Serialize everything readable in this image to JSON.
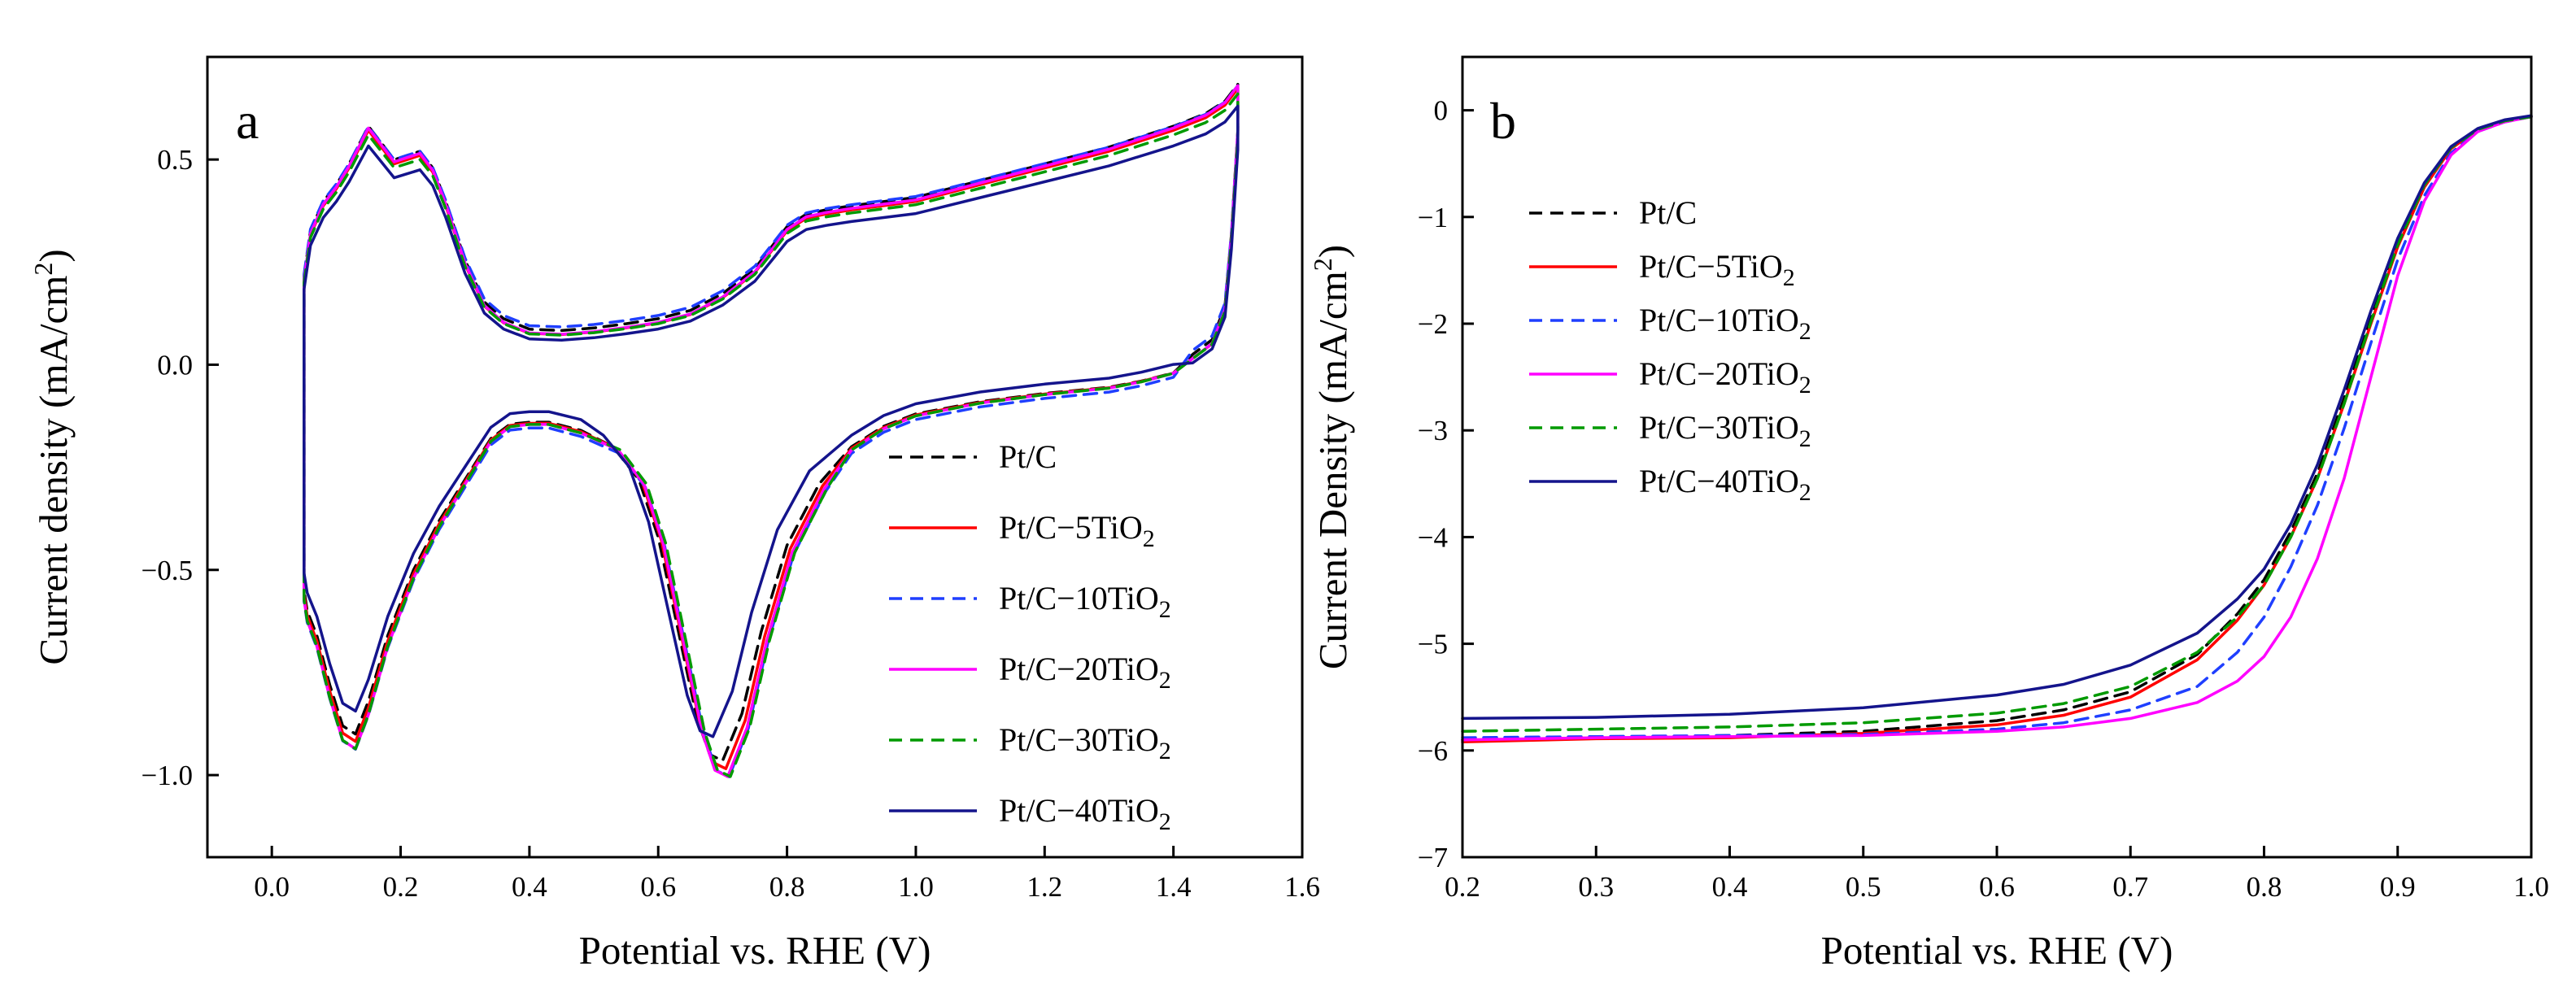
{
  "chart_data": [
    {
      "panel": "a",
      "type": "line",
      "title": "",
      "xlabel": "Potential vs. RHE (V)",
      "ylabel_main": "Current density (mA/cm",
      "ylabel_sup": "2",
      "ylabel_tail": ")",
      "xlim": [
        -0.1,
        1.6
      ],
      "ylim": [
        -1.2,
        0.75
      ],
      "xticks": [
        0.0,
        0.2,
        0.4,
        0.6,
        0.8,
        1.0,
        1.2,
        1.4,
        1.6
      ],
      "xtick_labels": [
        "0.0",
        "0.2",
        "0.4",
        "0.6",
        "0.8",
        "1.0",
        "1.2",
        "1.4",
        "1.6"
      ],
      "yticks": [
        0.5,
        0.0,
        -0.5,
        -1.0
      ],
      "ytick_labels": [
        "0.5",
        "0.0",
        "−0.5",
        "−1.0"
      ],
      "legend_position": "bottom-right",
      "grid": false,
      "base_curve": {
        "anodic": [
          [
            0.05,
            0.2
          ],
          [
            0.06,
            0.31
          ],
          [
            0.08,
            0.38
          ],
          [
            0.1,
            0.42
          ],
          [
            0.12,
            0.47
          ],
          [
            0.15,
            0.56
          ],
          [
            0.17,
            0.52
          ],
          [
            0.19,
            0.48
          ],
          [
            0.21,
            0.49
          ],
          [
            0.23,
            0.5
          ],
          [
            0.25,
            0.46
          ],
          [
            0.27,
            0.38
          ],
          [
            0.3,
            0.24
          ],
          [
            0.33,
            0.14
          ],
          [
            0.36,
            0.1
          ],
          [
            0.4,
            0.075
          ],
          [
            0.45,
            0.072
          ],
          [
            0.5,
            0.078
          ],
          [
            0.55,
            0.088
          ],
          [
            0.6,
            0.1
          ],
          [
            0.65,
            0.12
          ],
          [
            0.7,
            0.16
          ],
          [
            0.75,
            0.22
          ],
          [
            0.78,
            0.28
          ],
          [
            0.8,
            0.32
          ],
          [
            0.83,
            0.35
          ],
          [
            0.86,
            0.36
          ],
          [
            0.9,
            0.37
          ],
          [
            0.95,
            0.38
          ],
          [
            1.0,
            0.39
          ],
          [
            1.1,
            0.43
          ],
          [
            1.2,
            0.47
          ],
          [
            1.3,
            0.51
          ],
          [
            1.4,
            0.56
          ],
          [
            1.45,
            0.59
          ],
          [
            1.48,
            0.62
          ],
          [
            1.5,
            0.66
          ]
        ],
        "cathodic": [
          [
            1.5,
            0.66
          ],
          [
            1.5,
            0.55
          ],
          [
            1.49,
            0.3
          ],
          [
            1.48,
            0.13
          ],
          [
            1.46,
            0.05
          ],
          [
            1.43,
            0.015
          ],
          [
            1.4,
            -0.02
          ],
          [
            1.35,
            -0.04
          ],
          [
            1.3,
            -0.055
          ],
          [
            1.2,
            -0.07
          ],
          [
            1.1,
            -0.09
          ],
          [
            1.0,
            -0.12
          ],
          [
            0.95,
            -0.15
          ],
          [
            0.9,
            -0.2
          ],
          [
            0.85,
            -0.29
          ],
          [
            0.8,
            -0.44
          ],
          [
            0.76,
            -0.65
          ],
          [
            0.73,
            -0.85
          ],
          [
            0.7,
            -0.965
          ],
          [
            0.68,
            -0.95
          ],
          [
            0.66,
            -0.86
          ],
          [
            0.63,
            -0.64
          ],
          [
            0.6,
            -0.42
          ],
          [
            0.57,
            -0.28
          ],
          [
            0.53,
            -0.2
          ],
          [
            0.48,
            -0.16
          ],
          [
            0.43,
            -0.14
          ],
          [
            0.4,
            -0.14
          ],
          [
            0.37,
            -0.145
          ],
          [
            0.34,
            -0.18
          ],
          [
            0.3,
            -0.28
          ],
          [
            0.26,
            -0.38
          ],
          [
            0.22,
            -0.5
          ],
          [
            0.18,
            -0.66
          ],
          [
            0.15,
            -0.82
          ],
          [
            0.13,
            -0.9
          ],
          [
            0.11,
            -0.88
          ],
          [
            0.09,
            -0.78
          ],
          [
            0.07,
            -0.66
          ],
          [
            0.055,
            -0.6
          ],
          [
            0.05,
            -0.55
          ],
          [
            0.05,
            0.2
          ]
        ]
      },
      "series": [
        {
          "name": "Pt/C",
          "name_main": "Pt/C",
          "name_sub": "",
          "color": "#000000",
          "dash": "dashed",
          "anodic_factor": 1.02,
          "anodic_offset": 0.01,
          "cathodic_factor": 1.0,
          "cathodic_offset": 0.0,
          "cathodic_shift": 0.0
        },
        {
          "name": "Pt/C-5TiO2",
          "name_main": "Pt/C−5TiO",
          "name_sub": "2",
          "color": "#ff0000",
          "dash": "solid",
          "anodic_factor": 1.02,
          "anodic_offset": 0.0,
          "cathodic_factor": 1.02,
          "cathodic_offset": 0.0,
          "cathodic_shift": 0.005
        },
        {
          "name": "Pt/C-10TiO2",
          "name_main": "Pt/C−10TiO",
          "name_sub": "2",
          "color": "#1f3fff",
          "dash": "dashed",
          "anodic_factor": 1.0,
          "anodic_offset": 0.02,
          "cathodic_factor": 1.03,
          "cathodic_offset": -0.01,
          "cathodic_shift": 0.01
        },
        {
          "name": "Pt/C-20TiO2",
          "name_main": "Pt/C−20TiO",
          "name_sub": "2",
          "color": "#ff00ff",
          "dash": "solid",
          "anodic_factor": 1.03,
          "anodic_offset": 0.0,
          "cathodic_factor": 1.04,
          "cathodic_offset": 0.0,
          "cathodic_shift": 0.008
        },
        {
          "name": "Pt/C-30TiO2",
          "name_main": "Pt/C−30TiO",
          "name_sub": "2",
          "color": "#009a00",
          "dash": "dashed",
          "anodic_factor": 1.0,
          "anodic_offset": 0.0,
          "cathodic_factor": 1.04,
          "cathodic_offset": 0.0,
          "cathodic_shift": 0.012
        },
        {
          "name": "Pt/C-40TiO2",
          "name_main": "Pt/C−40TiO",
          "name_sub": "2",
          "color": "#14148c",
          "dash": "solid",
          "anodic_factor": 0.97,
          "anodic_offset": -0.01,
          "cathodic_factor": 0.96,
          "cathodic_offset": 0.02,
          "cathodic_shift": -0.015
        }
      ]
    },
    {
      "panel": "b",
      "type": "line",
      "title": "",
      "xlabel": "Potential vs. RHE (V)",
      "ylabel_main": "Current Density (mA/cm",
      "ylabel_sup": "2",
      "ylabel_tail": ")",
      "xlim": [
        0.2,
        1.0
      ],
      "ylim": [
        -7,
        0.5
      ],
      "xticks": [
        0.2,
        0.3,
        0.4,
        0.5,
        0.6,
        0.7,
        0.8,
        0.9,
        1.0
      ],
      "xtick_labels": [
        "0.2",
        "0.3",
        "0.4",
        "0.5",
        "0.6",
        "0.7",
        "0.8",
        "0.9",
        "1.0"
      ],
      "yticks": [
        0,
        -1,
        -2,
        -3,
        -4,
        -5,
        -6,
        -7
      ],
      "ytick_labels": [
        "0",
        "−1",
        "−2",
        "−3",
        "−4",
        "−5",
        "−6",
        "−7"
      ],
      "legend_position": "top-left",
      "grid": false,
      "series": [
        {
          "name": "Pt/C",
          "name_main": "Pt/C",
          "name_sub": "",
          "color": "#000000",
          "dash": "dashed",
          "points": [
            [
              0.2,
              -5.9
            ],
            [
              0.3,
              -5.88
            ],
            [
              0.4,
              -5.86
            ],
            [
              0.5,
              -5.82
            ],
            [
              0.6,
              -5.72
            ],
            [
              0.65,
              -5.62
            ],
            [
              0.7,
              -5.45
            ],
            [
              0.75,
              -5.1
            ],
            [
              0.78,
              -4.72
            ],
            [
              0.8,
              -4.4
            ],
            [
              0.82,
              -3.95
            ],
            [
              0.84,
              -3.4
            ],
            [
              0.86,
              -2.7
            ],
            [
              0.88,
              -1.95
            ],
            [
              0.9,
              -1.25
            ],
            [
              0.92,
              -0.7
            ],
            [
              0.94,
              -0.35
            ],
            [
              0.96,
              -0.18
            ],
            [
              0.98,
              -0.1
            ],
            [
              1.0,
              -0.06
            ]
          ]
        },
        {
          "name": "Pt/C-5TiO2",
          "name_main": "Pt/C−5TiO",
          "name_sub": "2",
          "color": "#ff0000",
          "dash": "solid",
          "points": [
            [
              0.2,
              -5.92
            ],
            [
              0.3,
              -5.89
            ],
            [
              0.4,
              -5.88
            ],
            [
              0.5,
              -5.84
            ],
            [
              0.6,
              -5.76
            ],
            [
              0.65,
              -5.67
            ],
            [
              0.7,
              -5.5
            ],
            [
              0.75,
              -5.15
            ],
            [
              0.78,
              -4.78
            ],
            [
              0.8,
              -4.45
            ],
            [
              0.82,
              -4.0
            ],
            [
              0.84,
              -3.45
            ],
            [
              0.86,
              -2.75
            ],
            [
              0.88,
              -2.0
            ],
            [
              0.9,
              -1.28
            ],
            [
              0.92,
              -0.72
            ],
            [
              0.94,
              -0.36
            ],
            [
              0.96,
              -0.18
            ],
            [
              0.98,
              -0.1
            ],
            [
              1.0,
              -0.06
            ]
          ]
        },
        {
          "name": "Pt/C-10TiO2",
          "name_main": "Pt/C−10TiO",
          "name_sub": "2",
          "color": "#1f3fff",
          "dash": "dashed",
          "points": [
            [
              0.2,
              -5.88
            ],
            [
              0.3,
              -5.87
            ],
            [
              0.4,
              -5.86
            ],
            [
              0.5,
              -5.85
            ],
            [
              0.6,
              -5.8
            ],
            [
              0.65,
              -5.74
            ],
            [
              0.7,
              -5.62
            ],
            [
              0.75,
              -5.4
            ],
            [
              0.78,
              -5.08
            ],
            [
              0.8,
              -4.75
            ],
            [
              0.82,
              -4.28
            ],
            [
              0.84,
              -3.7
            ],
            [
              0.86,
              -2.98
            ],
            [
              0.88,
              -2.18
            ],
            [
              0.9,
              -1.4
            ],
            [
              0.92,
              -0.8
            ],
            [
              0.94,
              -0.4
            ],
            [
              0.96,
              -0.2
            ],
            [
              0.98,
              -0.11
            ],
            [
              1.0,
              -0.06
            ]
          ]
        },
        {
          "name": "Pt/C-20TiO2",
          "name_main": "Pt/C−20TiO",
          "name_sub": "2",
          "color": "#ff00ff",
          "dash": "solid",
          "points": [
            [
              0.2,
              -5.9
            ],
            [
              0.3,
              -5.88
            ],
            [
              0.4,
              -5.87
            ],
            [
              0.5,
              -5.86
            ],
            [
              0.6,
              -5.82
            ],
            [
              0.65,
              -5.78
            ],
            [
              0.7,
              -5.7
            ],
            [
              0.75,
              -5.55
            ],
            [
              0.78,
              -5.35
            ],
            [
              0.8,
              -5.12
            ],
            [
              0.82,
              -4.75
            ],
            [
              0.84,
              -4.2
            ],
            [
              0.86,
              -3.45
            ],
            [
              0.88,
              -2.5
            ],
            [
              0.9,
              -1.55
            ],
            [
              0.92,
              -0.85
            ],
            [
              0.94,
              -0.42
            ],
            [
              0.96,
              -0.2
            ],
            [
              0.98,
              -0.11
            ],
            [
              1.0,
              -0.06
            ]
          ]
        },
        {
          "name": "Pt/C-30TiO2",
          "name_main": "Pt/C−30TiO",
          "name_sub": "2",
          "color": "#009a00",
          "dash": "dashed",
          "points": [
            [
              0.2,
              -5.82
            ],
            [
              0.3,
              -5.8
            ],
            [
              0.4,
              -5.78
            ],
            [
              0.5,
              -5.74
            ],
            [
              0.6,
              -5.65
            ],
            [
              0.65,
              -5.56
            ],
            [
              0.7,
              -5.4
            ],
            [
              0.75,
              -5.08
            ],
            [
              0.78,
              -4.75
            ],
            [
              0.8,
              -4.45
            ],
            [
              0.82,
              -4.0
            ],
            [
              0.84,
              -3.45
            ],
            [
              0.86,
              -2.75
            ],
            [
              0.88,
              -1.98
            ],
            [
              0.9,
              -1.26
            ],
            [
              0.92,
              -0.7
            ],
            [
              0.94,
              -0.35
            ],
            [
              0.96,
              -0.18
            ],
            [
              0.98,
              -0.1
            ],
            [
              1.0,
              -0.06
            ]
          ]
        },
        {
          "name": "Pt/C-40TiO2",
          "name_main": "Pt/C−40TiO",
          "name_sub": "2",
          "color": "#14148c",
          "dash": "solid",
          "points": [
            [
              0.2,
              -5.7
            ],
            [
              0.3,
              -5.69
            ],
            [
              0.4,
              -5.66
            ],
            [
              0.5,
              -5.6
            ],
            [
              0.6,
              -5.48
            ],
            [
              0.65,
              -5.38
            ],
            [
              0.7,
              -5.2
            ],
            [
              0.75,
              -4.9
            ],
            [
              0.78,
              -4.58
            ],
            [
              0.8,
              -4.3
            ],
            [
              0.82,
              -3.88
            ],
            [
              0.84,
              -3.32
            ],
            [
              0.86,
              -2.62
            ],
            [
              0.88,
              -1.88
            ],
            [
              0.9,
              -1.2
            ],
            [
              0.92,
              -0.68
            ],
            [
              0.94,
              -0.34
            ],
            [
              0.96,
              -0.17
            ],
            [
              0.98,
              -0.09
            ],
            [
              1.0,
              -0.05
            ]
          ]
        }
      ]
    }
  ]
}
